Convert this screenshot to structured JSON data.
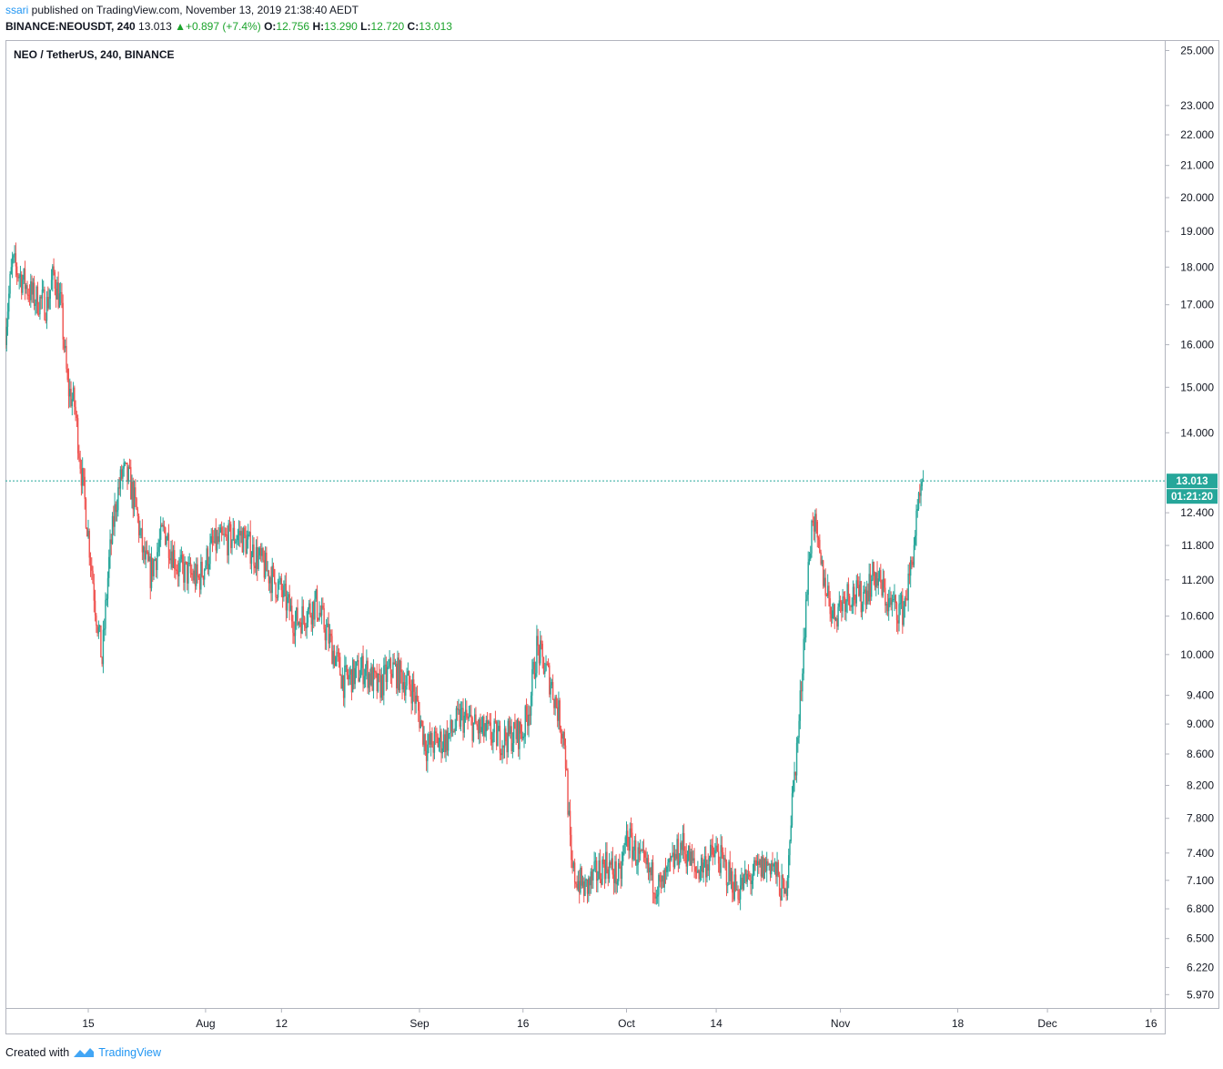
{
  "header": {
    "user": "ssari",
    "published_text": " published on TradingView.com, November 13, 2019 21:38:40 AEDT",
    "symbol": "BINANCE:NEOUSDT, 240",
    "last": "13.013",
    "change": "+0.897 (+7.4%)",
    "o_label": "O:",
    "o_value": "12.756",
    "h_label": "H:",
    "h_value": "13.290",
    "l_label": "L:",
    "l_value": "12.720",
    "c_label": "C:",
    "c_value": "13.013"
  },
  "footer": {
    "created_with": "Created with",
    "brand": "TradingView"
  },
  "colors": {
    "up": "#26a69a",
    "down": "#ef5350",
    "price_line": "#26a69a",
    "axis": "#b2b5be",
    "text": "#131722",
    "link": "#2196f3"
  },
  "chart_data": {
    "type": "candlestick",
    "title": "NEO / TetherUS, 240, BINANCE",
    "scale": "log",
    "ylim": [
      5.85,
      25.4
    ],
    "y_ticks": [
      "25.000",
      "23.000",
      "22.000",
      "21.000",
      "20.000",
      "19.000",
      "18.000",
      "17.000",
      "16.000",
      "15.000",
      "14.000",
      "12.400",
      "11.800",
      "11.200",
      "10.600",
      "10.000",
      "9.400",
      "9.000",
      "8.600",
      "8.200",
      "7.800",
      "7.400",
      "7.100",
      "6.800",
      "6.500",
      "6.220",
      "5.970"
    ],
    "x_ticks": [
      "15",
      "Aug",
      "12",
      "Sep",
      "16",
      "Oct",
      "14",
      "Nov",
      "18",
      "Dec",
      "16"
    ],
    "x_tick_dates": [
      "2019-07-15",
      "2019-08-01",
      "2019-08-12",
      "2019-09-01",
      "2019-09-16",
      "2019-10-01",
      "2019-10-14",
      "2019-11-01",
      "2019-11-18",
      "2019-12-01",
      "2019-12-16"
    ],
    "x_range": [
      "2019-07-03",
      "2019-12-18"
    ],
    "last_price_label": "13.013",
    "countdown_label": "01:21:20",
    "last_price": 13.013,
    "anchors": [
      [
        "2019-07-03",
        16.4
      ],
      [
        "2019-07-04",
        18.1
      ],
      [
        "2019-07-07",
        17.2
      ],
      [
        "2019-07-09",
        17.0
      ],
      [
        "2019-07-10",
        17.8
      ],
      [
        "2019-07-11",
        17.0
      ],
      [
        "2019-07-12",
        15.0
      ],
      [
        "2019-07-13",
        14.6
      ],
      [
        "2019-07-14",
        13.2
      ],
      [
        "2019-07-15",
        12.0
      ],
      [
        "2019-07-16",
        10.8
      ],
      [
        "2019-07-17",
        9.9
      ],
      [
        "2019-07-18",
        11.5
      ],
      [
        "2019-07-19",
        12.6
      ],
      [
        "2019-07-20",
        13.2
      ],
      [
        "2019-07-21",
        13.0
      ],
      [
        "2019-07-22",
        12.4
      ],
      [
        "2019-07-23",
        11.6
      ],
      [
        "2019-07-24",
        11.3
      ],
      [
        "2019-07-26",
        12.1
      ],
      [
        "2019-07-28",
        11.4
      ],
      [
        "2019-07-31",
        11.2
      ],
      [
        "2019-08-02",
        11.8
      ],
      [
        "2019-08-06",
        12.0
      ],
      [
        "2019-08-09",
        11.5
      ],
      [
        "2019-08-12",
        11.0
      ],
      [
        "2019-08-14",
        10.5
      ],
      [
        "2019-08-17",
        10.8
      ],
      [
        "2019-08-19",
        10.2
      ],
      [
        "2019-08-21",
        9.6
      ],
      [
        "2019-08-24",
        9.8
      ],
      [
        "2019-08-26",
        9.5
      ],
      [
        "2019-08-28",
        9.8
      ],
      [
        "2019-08-31",
        9.5
      ],
      [
        "2019-09-02",
        8.7
      ],
      [
        "2019-09-05",
        8.8
      ],
      [
        "2019-09-07",
        9.1
      ],
      [
        "2019-09-10",
        8.9
      ],
      [
        "2019-09-13",
        8.8
      ],
      [
        "2019-09-16",
        8.9
      ],
      [
        "2019-09-17",
        9.3
      ],
      [
        "2019-09-18",
        10.1
      ],
      [
        "2019-09-20",
        9.6
      ],
      [
        "2019-09-22",
        8.8
      ],
      [
        "2019-09-23",
        7.2
      ],
      [
        "2019-09-25",
        7.0
      ],
      [
        "2019-09-28",
        7.3
      ],
      [
        "2019-09-30",
        7.1
      ],
      [
        "2019-10-01",
        7.6
      ],
      [
        "2019-10-03",
        7.3
      ],
      [
        "2019-10-06",
        7.0
      ],
      [
        "2019-10-09",
        7.5
      ],
      [
        "2019-10-11",
        7.2
      ],
      [
        "2019-10-14",
        7.4
      ],
      [
        "2019-10-17",
        7.0
      ],
      [
        "2019-10-20",
        7.2
      ],
      [
        "2019-10-22",
        7.3
      ],
      [
        "2019-10-24",
        6.9
      ],
      [
        "2019-10-25",
        8.0
      ],
      [
        "2019-10-26",
        9.0
      ],
      [
        "2019-10-27",
        10.8
      ],
      [
        "2019-10-28",
        12.4
      ],
      [
        "2019-10-29",
        11.5
      ],
      [
        "2019-10-31",
        10.6
      ],
      [
        "2019-11-02",
        11.0
      ],
      [
        "2019-11-04",
        10.9
      ],
      [
        "2019-11-06",
        11.3
      ],
      [
        "2019-11-08",
        10.8
      ],
      [
        "2019-11-10",
        10.7
      ],
      [
        "2019-11-11",
        11.2
      ],
      [
        "2019-11-12",
        12.2
      ],
      [
        "2019-11-13",
        13.013
      ]
    ]
  }
}
